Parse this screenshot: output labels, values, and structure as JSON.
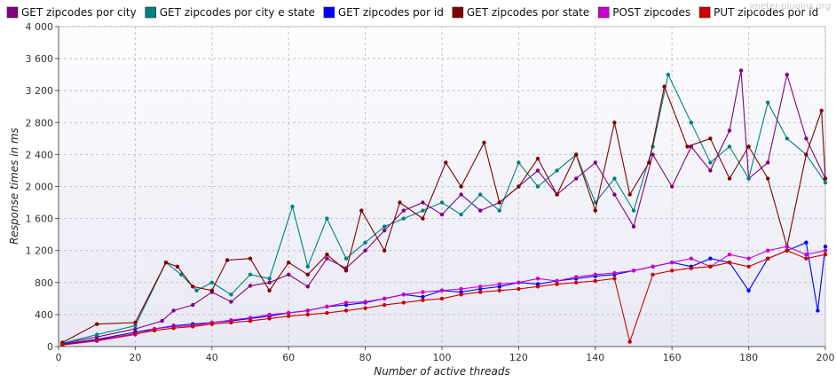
{
  "watermark": "jmeter-plugins.org",
  "chart_data": {
    "type": "line",
    "xlabel": "Number of active threads",
    "ylabel": "Response times in ms",
    "xlim": [
      0,
      200
    ],
    "ylim": [
      0,
      4000
    ],
    "x_ticks": [
      0,
      20,
      40,
      60,
      80,
      100,
      120,
      140,
      160,
      180,
      200
    ],
    "y_ticks": [
      0,
      400,
      800,
      1200,
      1600,
      2000,
      2400,
      2800,
      3200,
      3600,
      4000
    ],
    "y_tick_labels": [
      "0",
      "400",
      "800",
      "1 200",
      "1 600",
      "2 000",
      "2 400",
      "2 800",
      "3 200",
      "3 600",
      "4 000"
    ],
    "grid": true,
    "legend_position": "top",
    "series": [
      {
        "name": "GET zipcodes por city",
        "color": "#800080",
        "x": [
          1,
          10,
          20,
          27,
          30,
          35,
          40,
          45,
          50,
          55,
          60,
          65,
          70,
          75,
          80,
          85,
          90,
          95,
          100,
          105,
          110,
          115,
          120,
          125,
          130,
          135,
          140,
          145,
          150,
          155,
          160,
          165,
          170,
          175,
          178,
          180,
          185,
          190,
          195,
          200
        ],
        "values": [
          40,
          120,
          220,
          320,
          450,
          520,
          680,
          560,
          760,
          800,
          900,
          750,
          1100,
          980,
          1200,
          1450,
          1700,
          1800,
          1650,
          1900,
          1700,
          1800,
          2000,
          2200,
          1900,
          2100,
          2300,
          1900,
          1500,
          2400,
          2000,
          2500,
          2200,
          2700,
          3450,
          2100,
          2300,
          3400,
          2600,
          2100
        ]
      },
      {
        "name": "GET zipcodes por city e state",
        "color": "#008080",
        "x": [
          1,
          10,
          20,
          28,
          32,
          36,
          40,
          45,
          50,
          55,
          61,
          65,
          70,
          75,
          80,
          85,
          90,
          95,
          100,
          105,
          110,
          115,
          120,
          125,
          130,
          135,
          140,
          145,
          150,
          155,
          159,
          165,
          170,
          175,
          180,
          185,
          190,
          195,
          200
        ],
        "values": [
          40,
          150,
          260,
          1050,
          900,
          700,
          800,
          650,
          900,
          850,
          1750,
          1000,
          1600,
          1100,
          1300,
          1500,
          1600,
          1700,
          1800,
          1650,
          1900,
          1700,
          2300,
          2000,
          2200,
          2400,
          1800,
          2100,
          1700,
          2500,
          3400,
          2800,
          2300,
          2500,
          2100,
          3050,
          2600,
          2400,
          2050
        ]
      },
      {
        "name": "GET zipcodes por id",
        "color": "#0000ff",
        "x": [
          1,
          10,
          20,
          25,
          30,
          35,
          40,
          45,
          50,
          55,
          60,
          65,
          70,
          75,
          80,
          85,
          90,
          95,
          100,
          105,
          110,
          115,
          120,
          125,
          130,
          135,
          140,
          145,
          150,
          155,
          160,
          165,
          170,
          175,
          180,
          185,
          190,
          195,
          198,
          200
        ],
        "values": [
          30,
          90,
          180,
          220,
          260,
          280,
          300,
          320,
          350,
          380,
          420,
          450,
          500,
          520,
          550,
          600,
          650,
          620,
          700,
          680,
          720,
          750,
          800,
          780,
          820,
          850,
          880,
          900,
          950,
          1000,
          1050,
          1000,
          1100,
          1050,
          700,
          1100,
          1200,
          1300,
          450,
          1250
        ]
      },
      {
        "name": "GET zipcodes por state",
        "color": "#800000",
        "x": [
          1,
          10,
          20,
          28,
          31,
          35,
          40,
          44,
          50,
          55,
          60,
          65,
          70,
          75,
          79,
          85,
          89,
          95,
          101,
          105,
          111,
          115,
          120,
          125,
          130,
          135,
          140,
          145,
          149,
          154,
          158,
          164,
          170,
          175,
          180,
          185,
          190,
          195,
          199,
          200
        ],
        "values": [
          50,
          280,
          300,
          1050,
          1000,
          750,
          700,
          1080,
          1100,
          700,
          1050,
          900,
          1150,
          950,
          1700,
          1200,
          1800,
          1600,
          2300,
          2000,
          2550,
          1800,
          2000,
          2350,
          1900,
          2400,
          1700,
          2800,
          1900,
          2300,
          3250,
          2500,
          2600,
          2100,
          2500,
          2100,
          1250,
          2400,
          2950,
          2100
        ]
      },
      {
        "name": "POST zipcodes",
        "color": "#cc00cc",
        "x": [
          1,
          10,
          20,
          25,
          30,
          35,
          40,
          45,
          50,
          55,
          60,
          65,
          70,
          75,
          80,
          85,
          90,
          95,
          100,
          105,
          110,
          115,
          120,
          125,
          130,
          135,
          140,
          145,
          150,
          155,
          160,
          165,
          170,
          175,
          180,
          185,
          190,
          195,
          200
        ],
        "values": [
          20,
          70,
          150,
          220,
          250,
          260,
          300,
          330,
          360,
          400,
          420,
          450,
          500,
          550,
          560,
          600,
          650,
          680,
          700,
          720,
          750,
          780,
          800,
          850,
          820,
          870,
          900,
          920,
          950,
          1000,
          1050,
          1100,
          1000,
          1150,
          1100,
          1200,
          1250,
          1150,
          1200
        ]
      },
      {
        "name": "PUT zipcodes por id",
        "color": "#cc0000",
        "x": [
          1,
          10,
          20,
          25,
          30,
          35,
          40,
          45,
          50,
          55,
          60,
          65,
          70,
          75,
          80,
          85,
          90,
          95,
          100,
          105,
          110,
          115,
          120,
          125,
          130,
          135,
          140,
          145,
          149,
          155,
          160,
          165,
          170,
          175,
          180,
          185,
          190,
          195,
          200
        ],
        "values": [
          20,
          80,
          160,
          200,
          230,
          250,
          280,
          300,
          320,
          350,
          380,
          400,
          420,
          450,
          480,
          520,
          550,
          580,
          600,
          650,
          680,
          700,
          720,
          750,
          780,
          800,
          820,
          850,
          60,
          900,
          950,
          980,
          1000,
          1050,
          1000,
          1100,
          1200,
          1100,
          1150
        ]
      }
    ]
  }
}
